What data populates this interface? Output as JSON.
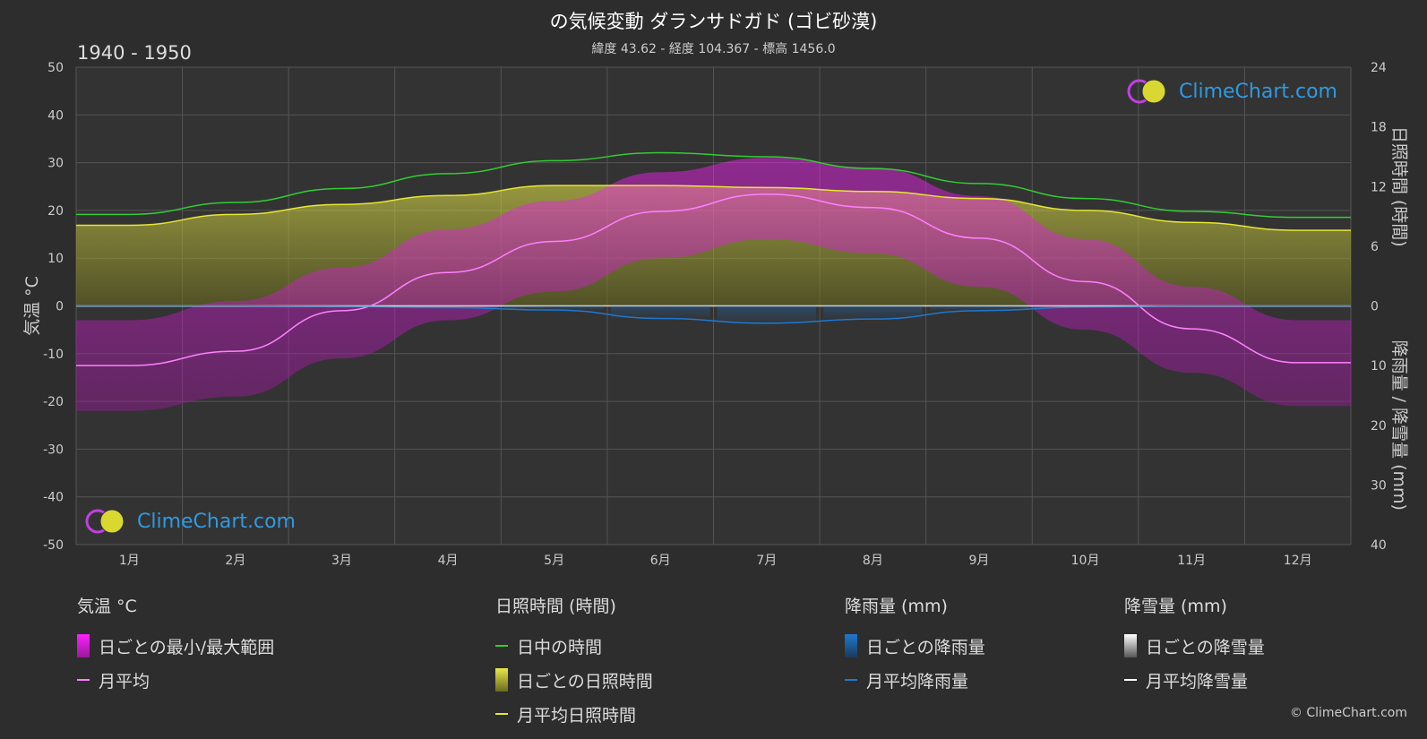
{
  "header": {
    "title": "の気候変動 ダランサドガド (ゴビ砂漠)",
    "subtitle": "緯度 43.62 - 経度 104.367 - 標高 1456.0",
    "period": "1940 - 1950"
  },
  "logo_text": "ClimeChart.com",
  "copyright": "© ClimeChart.com",
  "legend": {
    "temp": {
      "head": "気温 °C",
      "items": [
        "日ごとの最小/最大範囲",
        "月平均"
      ]
    },
    "sun": {
      "head": "日照時間 (時間)",
      "items": [
        "日中の時間",
        "日ごとの日照時間",
        "月平均日照時間"
      ]
    },
    "rain": {
      "head": "降雨量 (mm)",
      "items": [
        "日ごとの降雨量",
        "月平均降雨量"
      ]
    },
    "snow": {
      "head": "降雪量 (mm)",
      "items": [
        "日ごとの降雪量",
        "月平均降雪量"
      ]
    }
  },
  "colors": {
    "background": "#2d2d2d",
    "temp_range": "#e020e0",
    "temp_mean": "#ff80ff",
    "daylight": "#33cc33",
    "sunshine_fill": "#b8b828",
    "sunshine_mean": "#e6e633",
    "rain": "#1e78d2",
    "snow": "#ffffff"
  },
  "chart_data": {
    "type": "line",
    "months": [
      "1月",
      "2月",
      "3月",
      "4月",
      "5月",
      "6月",
      "7月",
      "8月",
      "9月",
      "10月",
      "11月",
      "12月"
    ],
    "left_axis": {
      "label": "気温 °C",
      "min": -50,
      "max": 50,
      "ticks": [
        50,
        40,
        30,
        20,
        10,
        0,
        -10,
        -20,
        -30,
        -40,
        -50
      ]
    },
    "right_axis_top": {
      "label": "日照時間 (時間)",
      "min": 0,
      "max": 24,
      "ticks": [
        24,
        18,
        12,
        6,
        0
      ]
    },
    "right_axis_bottom": {
      "label": "降雨量 / 降雪量 (mm)",
      "min": 0,
      "max": 40,
      "ticks": [
        0,
        10,
        20,
        30,
        40
      ]
    },
    "series": [
      {
        "name": "月平均",
        "values": [
          -12.5,
          -9.5,
          -1.0,
          7.0,
          13.5,
          19.8,
          23.4,
          20.6,
          14.2,
          5.1,
          -4.8,
          -11.9
        ]
      },
      {
        "name": "日中の時間",
        "values": [
          9.2,
          10.4,
          11.8,
          13.3,
          14.6,
          15.4,
          15.0,
          13.8,
          12.3,
          10.8,
          9.5,
          8.9
        ]
      },
      {
        "name": "月平均日照時間",
        "values": [
          8.1,
          9.2,
          10.2,
          11.1,
          12.1,
          12.1,
          11.9,
          11.5,
          10.8,
          9.6,
          8.4,
          7.6
        ]
      },
      {
        "name": "月平均降雨量",
        "values": [
          0.0,
          0.0,
          0.1,
          0.3,
          0.7,
          2.1,
          2.9,
          2.2,
          0.8,
          0.2,
          0.0,
          0.0
        ]
      },
      {
        "name": "月平均降雪量",
        "values": [
          0.1,
          0.1,
          0.1,
          0.1,
          0.0,
          0.0,
          0.0,
          0.0,
          0.0,
          0.1,
          0.1,
          0.1
        ]
      }
    ],
    "daily_range_monthly": {
      "name": "日ごとの最小/最大範囲",
      "min": [
        -22,
        -19,
        -11,
        -3,
        3,
        10,
        14,
        11,
        4,
        -5,
        -14,
        -21
      ],
      "max": [
        -3,
        1,
        8,
        16,
        22,
        28,
        31,
        29,
        23,
        14,
        4,
        -3
      ]
    }
  }
}
